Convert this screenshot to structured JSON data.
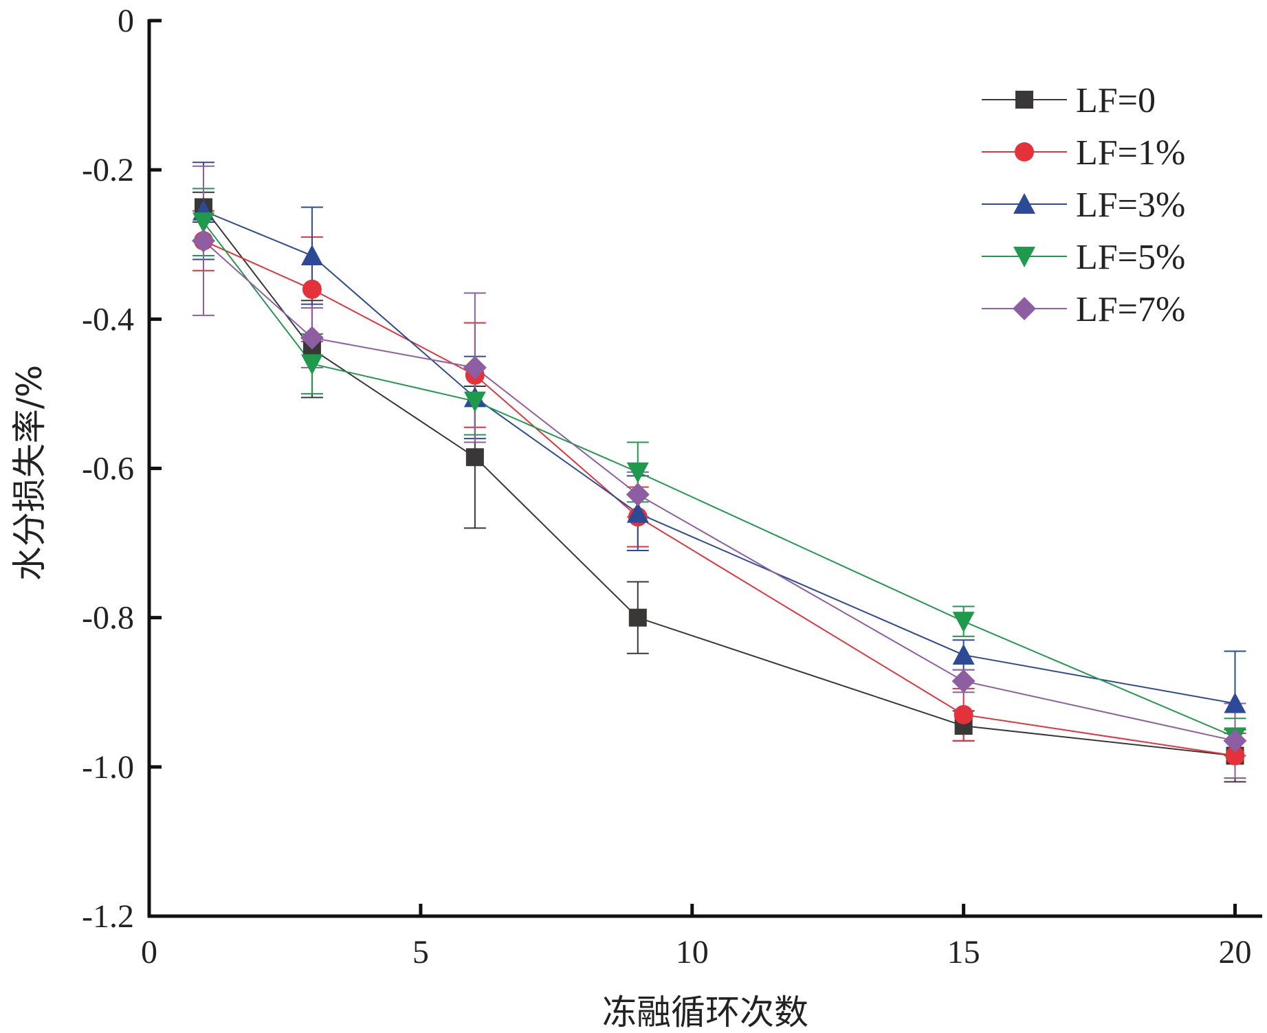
{
  "chart_data": {
    "type": "line",
    "title": "",
    "xlabel": "冻融循环次数",
    "ylabel": "水分损失率/%",
    "xlim": [
      0,
      20.5
    ],
    "ylim": [
      -1.2,
      0
    ],
    "xticks": [
      0,
      5,
      10,
      15,
      20
    ],
    "xtick_labels": [
      "0",
      "5",
      "10",
      "15",
      "20"
    ],
    "yticks": [
      0,
      -0.2,
      -0.4,
      -0.6,
      -0.8,
      -1.0,
      -1.2
    ],
    "ytick_labels": [
      "0",
      "-0.2",
      "-0.4",
      "-0.6",
      "-0.8",
      "-1.0",
      "-1.2"
    ],
    "grid": false,
    "legend_position": "top-right",
    "x": [
      1,
      3,
      6,
      9,
      15,
      20
    ],
    "series": [
      {
        "name": "LF=0",
        "color": "#3a3836",
        "marker": "square",
        "values": [
          -0.25,
          -0.44,
          -0.585,
          -0.8,
          -0.945,
          -0.985
        ],
        "errors": [
          0.02,
          0.065,
          0.095,
          0.048,
          0.02,
          0.035
        ]
      },
      {
        "name": "LF=1%",
        "color": "#e4323b",
        "marker": "circle",
        "values": [
          -0.295,
          -0.36,
          -0.475,
          -0.665,
          -0.93,
          -0.985
        ],
        "errors": [
          0.04,
          0.07,
          0.07,
          0.04,
          0.035,
          0.03
        ]
      },
      {
        "name": "LF=3%",
        "color": "#2d4a96",
        "marker": "triangle-up",
        "values": [
          -0.255,
          -0.315,
          -0.505,
          -0.66,
          -0.85,
          -0.915
        ],
        "errors": [
          0.065,
          0.065,
          0.055,
          0.05,
          0.02,
          0.07
        ]
      },
      {
        "name": "LF=5%",
        "color": "#1f9a4c",
        "marker": "triangle-down",
        "values": [
          -0.27,
          -0.46,
          -0.51,
          -0.605,
          -0.805,
          -0.96
        ],
        "errors": [
          0.045,
          0.04,
          0.045,
          0.04,
          0.02,
          0.025
        ]
      },
      {
        "name": "LF=7%",
        "color": "#8e5ea2",
        "marker": "diamond",
        "values": [
          -0.295,
          -0.425,
          -0.465,
          -0.635,
          -0.885,
          -0.965
        ],
        "errors": [
          0.1,
          0.04,
          0.1,
          0.03,
          0.015,
          0.05
        ]
      }
    ]
  }
}
